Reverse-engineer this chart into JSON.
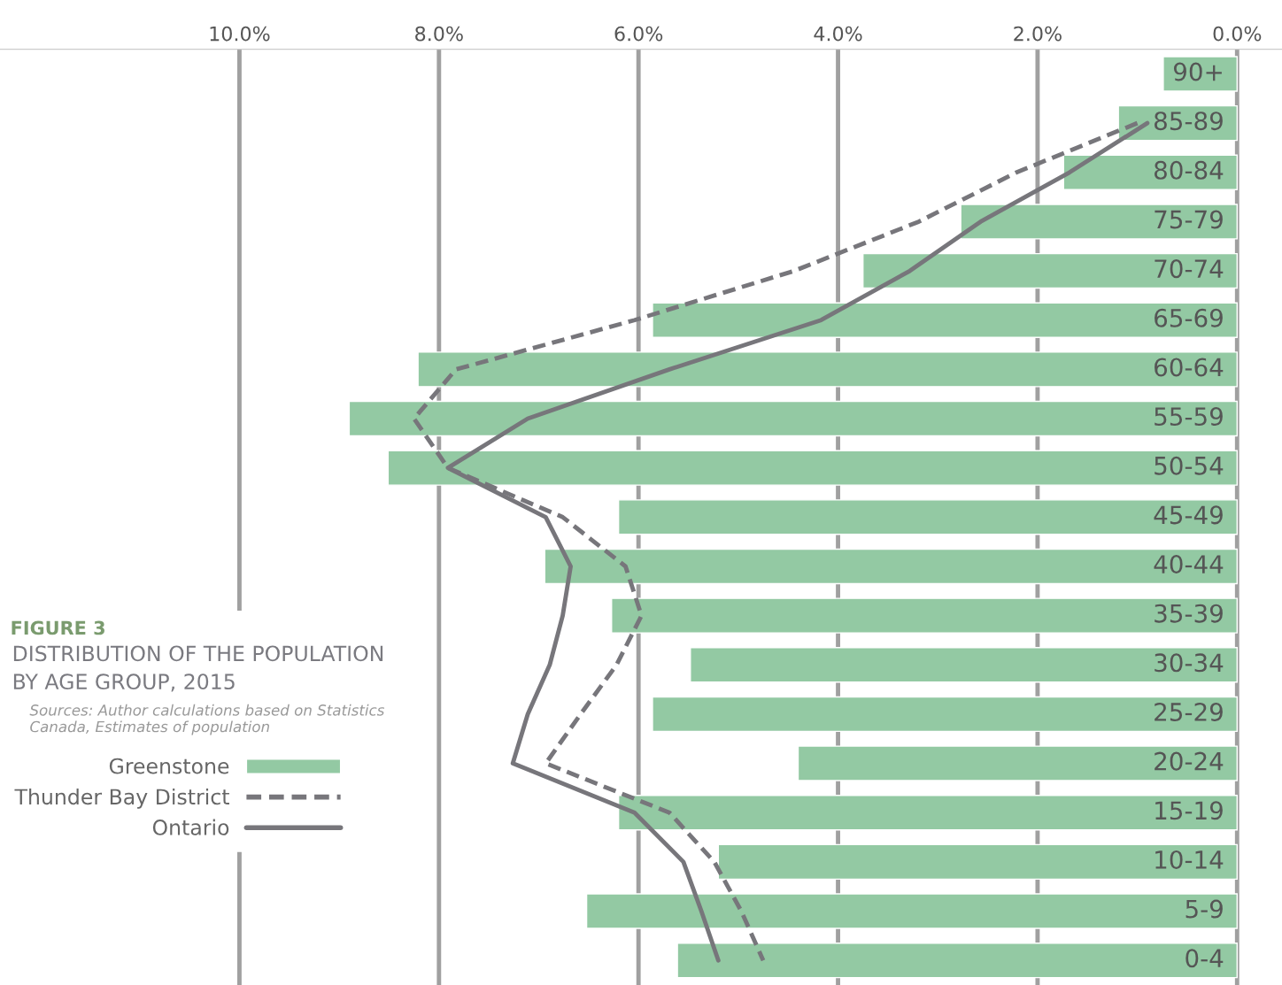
{
  "chart_data": {
    "type": "bar",
    "orientation": "horizontal",
    "title": "FIGURE 3",
    "subtitle": "DISTRIBUTION OF THE POPULATION BY AGE GROUP, 2015",
    "annotations": [
      "Sources: Author calculations based on Statistics Canada, Estimates of population"
    ],
    "categories": [
      "90+",
      "85-89",
      "80-84",
      "75-79",
      "70-74",
      "65-69",
      "60-64",
      "55-59",
      "50-54",
      "45-49",
      "40-44",
      "35-39",
      "30-34",
      "25-29",
      "20-24",
      "15-19",
      "10-14",
      "5-9",
      "0-4"
    ],
    "series": [
      {
        "name": "Greenstone",
        "color": "#93c9a3",
        "values": [
          0.74,
          1.19,
          1.74,
          2.77,
          3.75,
          5.86,
          8.21,
          8.9,
          8.51,
          6.2,
          6.94,
          6.27,
          5.48,
          5.86,
          4.4,
          6.2,
          5.2,
          6.52,
          5.61
        ]
      },
      {
        "name": "Thunder Bay District",
        "type": "line",
        "line_style": "dashed",
        "color": "#77767b",
        "values": [
          null,
          1.0,
          2.21,
          3.19,
          4.44,
          6.04,
          7.83,
          8.25,
          7.91,
          6.76,
          6.13,
          5.97,
          6.22,
          6.58,
          6.93,
          5.69,
          5.24,
          4.97,
          4.75
        ]
      },
      {
        "name": "Ontario",
        "type": "line",
        "line_style": "solid",
        "color": "#77767b",
        "values": [
          null,
          0.9,
          1.68,
          2.57,
          3.28,
          4.17,
          5.69,
          7.11,
          7.91,
          6.93,
          6.68,
          6.76,
          6.89,
          7.11,
          7.26,
          6.04,
          5.55,
          5.37,
          5.2
        ]
      }
    ],
    "xlim": [
      12.4,
      -0.45
    ],
    "xticks": [
      {
        "value": 10,
        "label": "10.0%"
      },
      {
        "value": 8,
        "label": "8.0%"
      },
      {
        "value": 6,
        "label": "6.0%"
      },
      {
        "value": 4,
        "label": "4.0%"
      },
      {
        "value": 2,
        "label": "2.0%"
      },
      {
        "value": 0,
        "label": "0.0%"
      }
    ],
    "grid": "x",
    "legend": "bottom left",
    "marker": "none"
  }
}
